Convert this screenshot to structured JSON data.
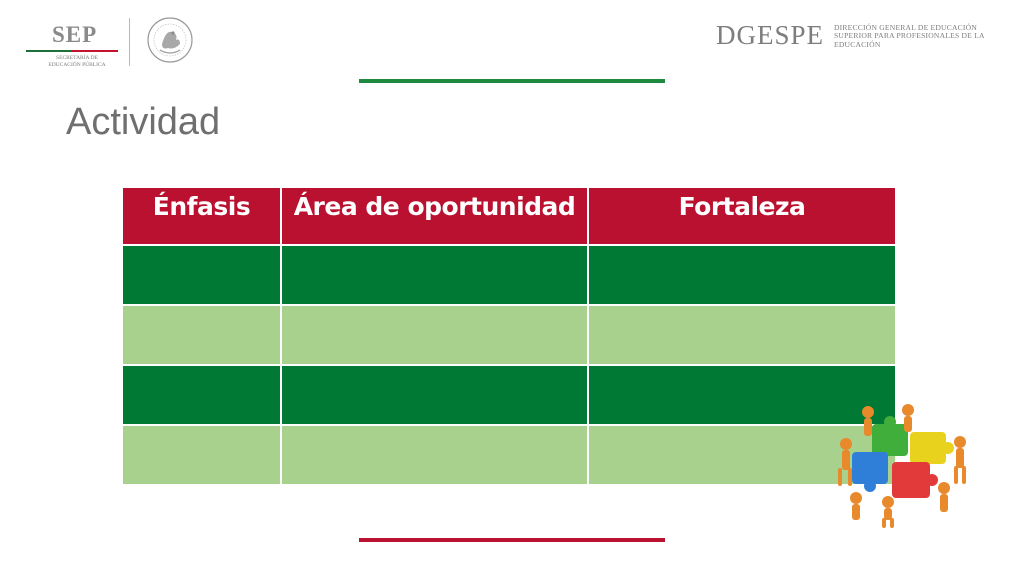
{
  "header": {
    "sep_logo": {
      "wordmark": "SEP",
      "subtitle_lines": [
        "SECRETARÍA DE",
        "EDUCACIÓN PÚBLICA"
      ],
      "stripe_colors": [
        "#1f6f3a",
        "#c41230"
      ]
    },
    "seal": {
      "icon": "mexican-eagle-seal-icon"
    },
    "dgespe_logo": {
      "wordmark": "DGESPE",
      "subtitle": "DIRECCIÓN GENERAL DE EDUCACIÓN SUPERIOR PARA PROFESIONALES DE LA EDUCACIÓN"
    }
  },
  "title": "Actividad",
  "table": {
    "columns": [
      "Énfasis",
      "Área de oportunidad",
      "Fortaleza"
    ],
    "row_count": 4,
    "rows": [
      [
        "",
        "",
        ""
      ],
      [
        "",
        "",
        ""
      ],
      [
        "",
        "",
        ""
      ],
      [
        "",
        "",
        ""
      ]
    ]
  },
  "decoration": {
    "icon": "puzzle-team-icon"
  },
  "colors": {
    "header_red": "#b9112f",
    "dark_green": "#007934",
    "light_green": "#a8d18d",
    "accent_green": "#1e8a3e",
    "accent_red": "#b9112f",
    "title_gray": "#6f6f6f"
  }
}
